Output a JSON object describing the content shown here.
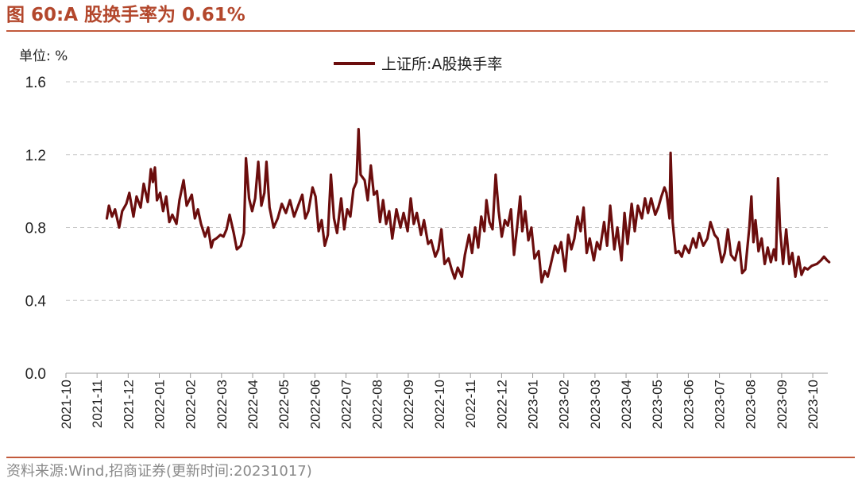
{
  "figure": {
    "title": "图 60:A 股换手率为 0.61%",
    "source": "资料来源:Wind,招商证券(更新时间:20231017)"
  },
  "colors": {
    "accent": "#b3472c",
    "series": "#6b0d0d",
    "grid": "#c8c8c8"
  },
  "chart_data": {
    "type": "line",
    "unit_label": "单位: %",
    "ylim": [
      0,
      1.6
    ],
    "yticks": [
      "0.0",
      "0.4",
      "0.8",
      "1.2",
      "1.6"
    ],
    "grid": "horizontal-dashed",
    "legend_position": "top-center",
    "x_ticks": [
      "2021-10",
      "2021-11",
      "2021-12",
      "2022-01",
      "2022-02",
      "2022-03",
      "2022-04",
      "2022-05",
      "2022-06",
      "2022-07",
      "2022-08",
      "2022-09",
      "2022-10",
      "2022-11",
      "2022-12",
      "2023-01",
      "2023-02",
      "2023-03",
      "2023-04",
      "2023-05",
      "2023-06",
      "2023-07",
      "2023-08",
      "2023-09",
      "2023-10"
    ],
    "series": [
      {
        "name": "上证所:A股换手率",
        "points": [
          [
            "2021-11-10",
            0.85
          ],
          [
            "2021-11-12",
            0.92
          ],
          [
            "2021-11-15",
            0.86
          ],
          [
            "2021-11-18",
            0.9
          ],
          [
            "2021-11-22",
            0.8
          ],
          [
            "2021-11-25",
            0.89
          ],
          [
            "2021-11-29",
            0.93
          ],
          [
            "2021-12-02",
            0.99
          ],
          [
            "2021-12-06",
            0.86
          ],
          [
            "2021-12-09",
            0.97
          ],
          [
            "2021-12-13",
            0.91
          ],
          [
            "2021-12-16",
            1.04
          ],
          [
            "2021-12-20",
            0.94
          ],
          [
            "2021-12-23",
            1.12
          ],
          [
            "2021-12-25",
            1.05
          ],
          [
            "2021-12-27",
            1.13
          ],
          [
            "2021-12-29",
            0.95
          ],
          [
            "2022-01-01",
            0.99
          ],
          [
            "2022-01-04",
            0.89
          ],
          [
            "2022-01-07",
            0.97
          ],
          [
            "2022-01-10",
            0.83
          ],
          [
            "2022-01-13",
            0.87
          ],
          [
            "2022-01-17",
            0.82
          ],
          [
            "2022-01-20",
            0.95
          ],
          [
            "2022-01-24",
            1.06
          ],
          [
            "2022-01-27",
            0.92
          ],
          [
            "2022-02-01",
            0.98
          ],
          [
            "2022-02-04",
            0.85
          ],
          [
            "2022-02-07",
            0.9
          ],
          [
            "2022-02-10",
            0.82
          ],
          [
            "2022-02-14",
            0.75
          ],
          [
            "2022-02-17",
            0.8
          ],
          [
            "2022-02-20",
            0.69
          ],
          [
            "2022-02-22",
            0.73
          ],
          [
            "2022-02-25",
            0.74
          ],
          [
            "2022-03-01",
            0.76
          ],
          [
            "2022-03-04",
            0.75
          ],
          [
            "2022-03-07",
            0.79
          ],
          [
            "2022-03-10",
            0.87
          ],
          [
            "2022-03-14",
            0.77
          ],
          [
            "2022-03-17",
            0.68
          ],
          [
            "2022-03-21",
            0.7
          ],
          [
            "2022-03-24",
            0.77
          ],
          [
            "2022-03-26",
            1.18
          ],
          [
            "2022-03-29",
            0.96
          ],
          [
            "2022-04-01",
            0.89
          ],
          [
            "2022-04-04",
            0.96
          ],
          [
            "2022-04-07",
            1.16
          ],
          [
            "2022-04-10",
            0.92
          ],
          [
            "2022-04-13",
            0.99
          ],
          [
            "2022-04-15",
            1.16
          ],
          [
            "2022-04-18",
            0.91
          ],
          [
            "2022-04-22",
            0.8
          ],
          [
            "2022-04-26",
            0.85
          ],
          [
            "2022-04-30",
            0.93
          ],
          [
            "2022-05-04",
            0.88
          ],
          [
            "2022-05-08",
            0.95
          ],
          [
            "2022-05-12",
            0.86
          ],
          [
            "2022-05-16",
            0.92
          ],
          [
            "2022-05-20",
            0.98
          ],
          [
            "2022-05-23",
            0.85
          ],
          [
            "2022-05-26",
            0.89
          ],
          [
            "2022-05-30",
            1.02
          ],
          [
            "2022-06-02",
            0.97
          ],
          [
            "2022-06-05",
            0.78
          ],
          [
            "2022-06-08",
            0.84
          ],
          [
            "2022-06-11",
            0.7
          ],
          [
            "2022-06-14",
            0.76
          ],
          [
            "2022-06-17",
            1.09
          ],
          [
            "2022-06-20",
            0.85
          ],
          [
            "2022-06-23",
            0.77
          ],
          [
            "2022-06-27",
            0.96
          ],
          [
            "2022-06-30",
            0.79
          ],
          [
            "2022-07-03",
            0.9
          ],
          [
            "2022-07-06",
            0.86
          ],
          [
            "2022-07-09",
            1.01
          ],
          [
            "2022-07-12",
            1.05
          ],
          [
            "2022-07-14",
            1.34
          ],
          [
            "2022-07-16",
            1.09
          ],
          [
            "2022-07-20",
            1.06
          ],
          [
            "2022-07-23",
            0.95
          ],
          [
            "2022-07-26",
            1.14
          ],
          [
            "2022-07-29",
            0.98
          ],
          [
            "2022-08-01",
            1.0
          ],
          [
            "2022-08-04",
            0.83
          ],
          [
            "2022-08-07",
            0.95
          ],
          [
            "2022-08-10",
            0.82
          ],
          [
            "2022-08-13",
            0.89
          ],
          [
            "2022-08-16",
            0.74
          ],
          [
            "2022-08-20",
            0.9
          ],
          [
            "2022-08-24",
            0.8
          ],
          [
            "2022-08-27",
            0.88
          ],
          [
            "2022-08-31",
            0.78
          ],
          [
            "2022-09-03",
            0.96
          ],
          [
            "2022-09-06",
            0.82
          ],
          [
            "2022-09-09",
            0.88
          ],
          [
            "2022-09-13",
            0.76
          ],
          [
            "2022-09-16",
            0.84
          ],
          [
            "2022-09-20",
            0.71
          ],
          [
            "2022-09-23",
            0.73
          ],
          [
            "2022-09-27",
            0.64
          ],
          [
            "2022-09-30",
            0.68
          ],
          [
            "2022-10-03",
            0.79
          ],
          [
            "2022-10-06",
            0.6
          ],
          [
            "2022-10-10",
            0.63
          ],
          [
            "2022-10-13",
            0.57
          ],
          [
            "2022-10-16",
            0.52
          ],
          [
            "2022-10-19",
            0.58
          ],
          [
            "2022-10-23",
            0.53
          ],
          [
            "2022-10-26",
            0.65
          ],
          [
            "2022-10-30",
            0.76
          ],
          [
            "2022-11-02",
            0.66
          ],
          [
            "2022-11-05",
            0.8
          ],
          [
            "2022-11-08",
            0.69
          ],
          [
            "2022-11-11",
            0.86
          ],
          [
            "2022-11-14",
            0.78
          ],
          [
            "2022-11-16",
            0.95
          ],
          [
            "2022-11-19",
            0.83
          ],
          [
            "2022-11-22",
            0.79
          ],
          [
            "2022-11-25",
            1.09
          ],
          [
            "2022-11-28",
            0.89
          ],
          [
            "2022-12-01",
            0.75
          ],
          [
            "2022-12-04",
            0.84
          ],
          [
            "2022-12-07",
            0.81
          ],
          [
            "2022-12-10",
            0.9
          ],
          [
            "2022-12-13",
            0.65
          ],
          [
            "2022-12-16",
            0.8
          ],
          [
            "2022-12-19",
            0.97
          ],
          [
            "2022-12-21",
            0.78
          ],
          [
            "2022-12-24",
            0.89
          ],
          [
            "2022-12-27",
            0.73
          ],
          [
            "2022-12-30",
            0.8
          ],
          [
            "2023-01-02",
            0.63
          ],
          [
            "2023-01-06",
            0.67
          ],
          [
            "2023-01-09",
            0.5
          ],
          [
            "2023-01-12",
            0.56
          ],
          [
            "2023-01-15",
            0.53
          ],
          [
            "2023-01-18",
            0.6
          ],
          [
            "2023-01-22",
            0.7
          ],
          [
            "2023-01-25",
            0.66
          ],
          [
            "2023-01-28",
            0.72
          ],
          [
            "2023-02-01",
            0.56
          ],
          [
            "2023-02-04",
            0.76
          ],
          [
            "2023-02-07",
            0.68
          ],
          [
            "2023-02-10",
            0.74
          ],
          [
            "2023-02-13",
            0.86
          ],
          [
            "2023-02-16",
            0.78
          ],
          [
            "2023-02-19",
            0.91
          ],
          [
            "2023-02-22",
            0.66
          ],
          [
            "2023-02-25",
            0.74
          ],
          [
            "2023-03-01",
            0.62
          ],
          [
            "2023-03-04",
            0.72
          ],
          [
            "2023-03-07",
            0.68
          ],
          [
            "2023-03-11",
            0.83
          ],
          [
            "2023-03-14",
            0.7
          ],
          [
            "2023-03-17",
            0.92
          ],
          [
            "2023-03-21",
            0.68
          ],
          [
            "2023-03-24",
            0.8
          ],
          [
            "2023-03-28",
            0.62
          ],
          [
            "2023-03-31",
            0.88
          ],
          [
            "2023-04-03",
            0.71
          ],
          [
            "2023-04-07",
            0.93
          ],
          [
            "2023-04-10",
            0.78
          ],
          [
            "2023-04-13",
            0.92
          ],
          [
            "2023-04-17",
            0.85
          ],
          [
            "2023-04-20",
            0.96
          ],
          [
            "2023-04-23",
            0.88
          ],
          [
            "2023-04-26",
            0.96
          ],
          [
            "2023-04-30",
            0.87
          ],
          [
            "2023-05-03",
            0.91
          ],
          [
            "2023-05-06",
            0.97
          ],
          [
            "2023-05-09",
            1.02
          ],
          [
            "2023-05-11",
            0.99
          ],
          [
            "2023-05-14",
            0.85
          ],
          [
            "2023-05-15",
            1.21
          ],
          [
            "2023-05-17",
            0.83
          ],
          [
            "2023-05-20",
            0.66
          ],
          [
            "2023-05-23",
            0.67
          ],
          [
            "2023-05-26",
            0.64
          ],
          [
            "2023-05-29",
            0.7
          ],
          [
            "2023-06-02",
            0.66
          ],
          [
            "2023-06-06",
            0.74
          ],
          [
            "2023-06-09",
            0.69
          ],
          [
            "2023-06-12",
            0.77
          ],
          [
            "2023-06-16",
            0.7
          ],
          [
            "2023-06-20",
            0.74
          ],
          [
            "2023-06-23",
            0.83
          ],
          [
            "2023-06-27",
            0.76
          ],
          [
            "2023-06-30",
            0.74
          ],
          [
            "2023-07-04",
            0.61
          ],
          [
            "2023-07-07",
            0.66
          ],
          [
            "2023-07-10",
            0.79
          ],
          [
            "2023-07-13",
            0.65
          ],
          [
            "2023-07-17",
            0.62
          ],
          [
            "2023-07-21",
            0.72
          ],
          [
            "2023-07-24",
            0.55
          ],
          [
            "2023-07-27",
            0.57
          ],
          [
            "2023-07-31",
            0.8
          ],
          [
            "2023-08-02",
            0.97
          ],
          [
            "2023-08-04",
            0.72
          ],
          [
            "2023-08-06",
            0.84
          ],
          [
            "2023-08-09",
            0.67
          ],
          [
            "2023-08-12",
            0.74
          ],
          [
            "2023-08-15",
            0.6
          ],
          [
            "2023-08-18",
            0.69
          ],
          [
            "2023-08-21",
            0.61
          ],
          [
            "2023-08-24",
            0.68
          ],
          [
            "2023-08-26",
            0.62
          ],
          [
            "2023-08-28",
            1.07
          ],
          [
            "2023-08-30",
            0.79
          ],
          [
            "2023-09-02",
            0.6
          ],
          [
            "2023-09-05",
            0.79
          ],
          [
            "2023-09-08",
            0.6
          ],
          [
            "2023-09-11",
            0.66
          ],
          [
            "2023-09-14",
            0.53
          ],
          [
            "2023-09-17",
            0.64
          ],
          [
            "2023-09-20",
            0.54
          ],
          [
            "2023-09-23",
            0.58
          ],
          [
            "2023-09-26",
            0.57
          ],
          [
            "2023-09-30",
            0.59
          ],
          [
            "2023-10-05",
            0.6
          ],
          [
            "2023-10-09",
            0.62
          ],
          [
            "2023-10-12",
            0.64
          ],
          [
            "2023-10-15",
            0.62
          ],
          [
            "2023-10-17",
            0.61
          ]
        ]
      }
    ]
  }
}
